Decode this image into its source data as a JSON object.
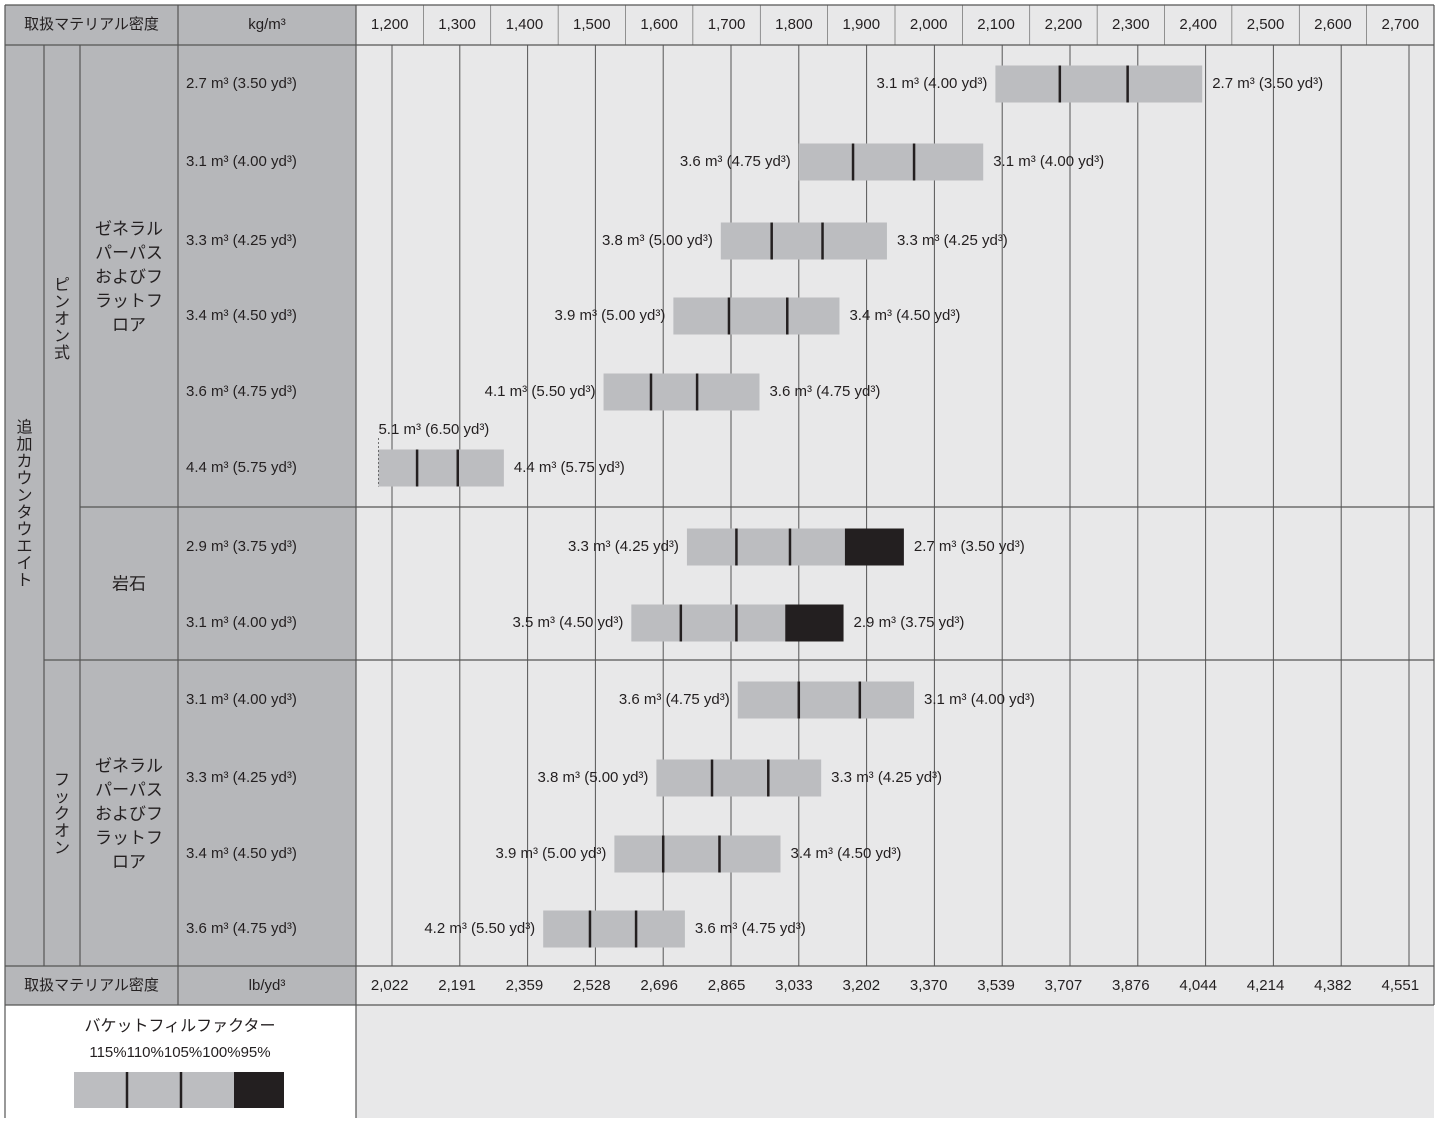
{
  "header": {
    "title": "取扱マテリアル密度",
    "unit": "kg/m³",
    "ticks": [
      "1,200",
      "1,300",
      "1,400",
      "1,500",
      "1,600",
      "1,700",
      "1,800",
      "1,900",
      "2,000",
      "2,100",
      "2,200",
      "2,300",
      "2,400",
      "2,500",
      "2,600",
      "2,700"
    ]
  },
  "footer_axis": {
    "title": "取扱マテリアル密度",
    "unit": "lb/yd³",
    "ticks": [
      "2,022",
      "2,191",
      "2,359",
      "2,528",
      "2,696",
      "2,865",
      "3,033",
      "3,202",
      "3,370",
      "3,539",
      "3,707",
      "3,876",
      "4,044",
      "4,214",
      "4,382",
      "4,551"
    ]
  },
  "labels": {
    "outer": "追加カウンタウエイト",
    "pinon": "ピンオン式",
    "hookon": "フックオン",
    "general": "ゼネラルパーパスおよびフラットフロア",
    "rock": "岩石"
  },
  "legend": {
    "title": "バケットフィルファクター",
    "percents": [
      "115%",
      "110%",
      "105%",
      "100%",
      "95%"
    ],
    "colors": {
      "fill": "#bcbdc0",
      "dark": "#231f20"
    }
  },
  "colors": {
    "label_bg": "#b6b7ba",
    "plot_bg": "#e8e8e9",
    "bar": "#bcbdc0",
    "bar_dark": "#231f20",
    "line": "#555555"
  },
  "chart_data": {
    "type": "range-bar",
    "x_unit": "kg/m³",
    "xlim": [
      1150,
      2730
    ],
    "ticks": [
      1200,
      1300,
      1400,
      1500,
      1600,
      1700,
      1800,
      1900,
      2000,
      2100,
      2200,
      2300,
      2400,
      2500,
      2600,
      2700
    ],
    "rows": [
      {
        "group": "ピンオン式",
        "material": "ゼネラルパーパスおよびフラットフロア",
        "bucket": "2.7 m³ (3.50 yd³)",
        "left_label": "3.1 m³ (4.00 yd³)",
        "right_label": "2.7 m³ (3.50 yd³)",
        "start": 2090,
        "dividers": [
          2185,
          2285
        ],
        "dark_start": null,
        "end": 2395
      },
      {
        "group": "ピンオン式",
        "material": "ゼネラルパーパスおよびフラットフロア",
        "bucket": "3.1 m³ (4.00 yd³)",
        "left_label": "3.6 m³ (4.75 yd³)",
        "right_label": "3.1 m³ (4.00 yd³)",
        "start": 1800,
        "dividers": [
          1880,
          1970
        ],
        "dark_start": null,
        "end": 2072
      },
      {
        "group": "ピンオン式",
        "material": "ゼネラルパーパスおよびフラットフロア",
        "bucket": "3.3 m³ (4.25 yd³)",
        "left_label": "3.8 m³ (5.00 yd³)",
        "right_label": "3.3 m³ (4.25 yd³)",
        "start": 1685,
        "dividers": [
          1760,
          1835
        ],
        "dark_start": null,
        "end": 1930
      },
      {
        "group": "ピンオン式",
        "material": "ゼネラルパーパスおよびフラットフロア",
        "bucket": "3.4 m³ (4.50 yd³)",
        "left_label": "3.9 m³ (5.00 yd³)",
        "right_label": "3.4 m³ (4.50 yd³)",
        "start": 1615,
        "dividers": [
          1697,
          1783
        ],
        "dark_start": null,
        "end": 1860
      },
      {
        "group": "ピンオン式",
        "material": "ゼネラルパーパスおよびフラットフロア",
        "bucket": "3.6 m³ (4.75 yd³)",
        "left_label": "4.1 m³ (5.50 yd³)",
        "right_label": "3.6 m³ (4.75 yd³)",
        "start": 1512,
        "dividers": [
          1582,
          1650
        ],
        "dark_start": null,
        "end": 1742
      },
      {
        "group": "ピンオン式",
        "material": "ゼネラルパーパスおよびフラットフロア",
        "bucket": "4.4 m³ (5.75 yd³)",
        "left_label": "5.1 m³ (6.50 yd³)",
        "right_label": "4.4 m³ (5.75 yd³)",
        "start": 1180,
        "dividers": [
          1237,
          1297
        ],
        "dark_start": null,
        "end": 1365
      },
      {
        "group": "ピンオン式",
        "material": "岩石",
        "bucket": "2.9 m³ (3.75 yd³)",
        "left_label": "3.3 m³ (4.25 yd³)",
        "right_label": "2.7 m³ (3.50 yd³)",
        "start": 1635,
        "dividers": [
          1708,
          1787
        ],
        "dark_start": 1868,
        "end": 1955
      },
      {
        "group": "ピンオン式",
        "material": "岩石",
        "bucket": "3.1 m³ (4.00 yd³)",
        "left_label": "3.5 m³ (4.50 yd³)",
        "right_label": "2.9 m³ (3.75 yd³)",
        "start": 1553,
        "dividers": [
          1626,
          1708
        ],
        "dark_start": 1780,
        "end": 1866
      },
      {
        "group": "フックオン",
        "material": "ゼネラルパーパスおよびフラットフロア",
        "bucket": "3.1 m³ (4.00 yd³)",
        "left_label": "3.6 m³ (4.75 yd³)",
        "right_label": "3.1 m³ (4.00 yd³)",
        "start": 1710,
        "dividers": [
          1800,
          1890
        ],
        "dark_start": null,
        "end": 1970
      },
      {
        "group": "フックオン",
        "material": "ゼネラルパーパスおよびフラットフロア",
        "bucket": "3.3 m³ (4.25 yd³)",
        "left_label": "3.8 m³ (5.00 yd³)",
        "right_label": "3.3 m³ (4.25 yd³)",
        "start": 1590,
        "dividers": [
          1672,
          1755
        ],
        "dark_start": null,
        "end": 1833
      },
      {
        "group": "フックオン",
        "material": "ゼネラルパーパスおよびフラットフロア",
        "bucket": "3.4 m³ (4.50 yd³)",
        "left_label": "3.9 m³ (5.00 yd³)",
        "right_label": "3.4 m³ (4.50 yd³)",
        "start": 1528,
        "dividers": [
          1600,
          1683
        ],
        "dark_start": null,
        "end": 1773
      },
      {
        "group": "フックオン",
        "material": "ゼネラルパーパスおよびフラットフロア",
        "bucket": "3.6 m³ (4.75 yd³)",
        "left_label": "4.2 m³ (5.50 yd³)",
        "right_label": "3.6 m³ (4.75 yd³)",
        "start": 1423,
        "dividers": [
          1492,
          1560
        ],
        "dark_start": null,
        "end": 1632
      }
    ]
  }
}
